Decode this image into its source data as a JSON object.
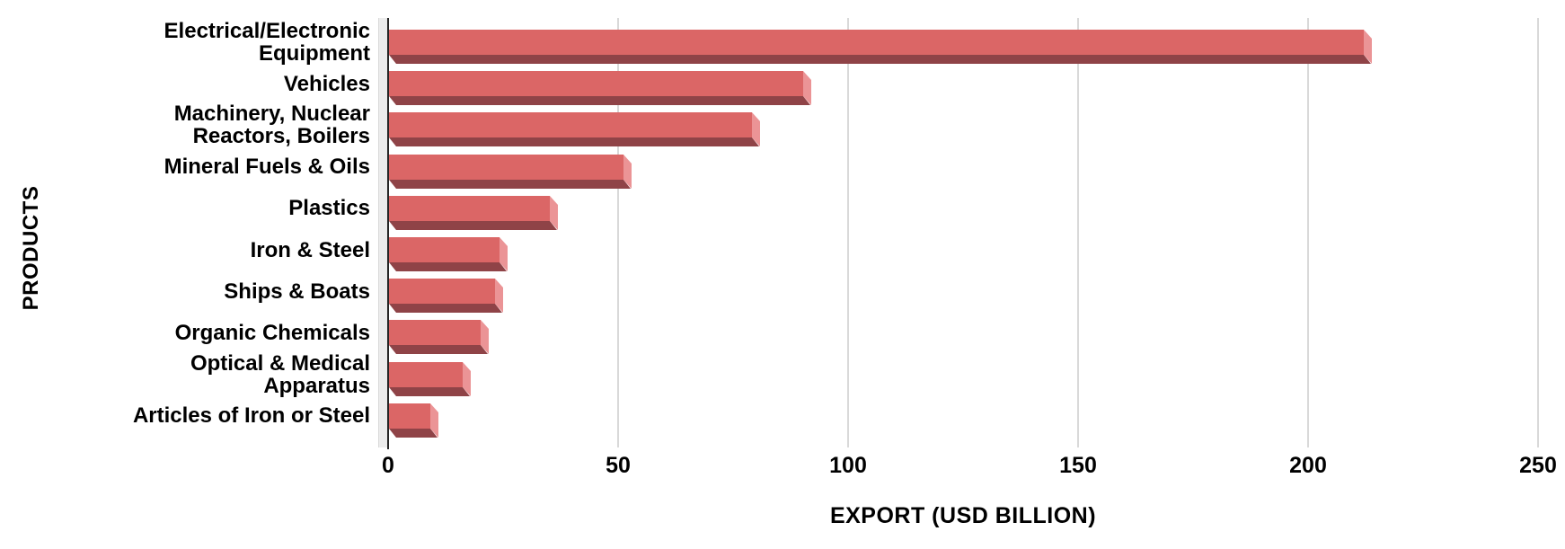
{
  "chart_data": {
    "type": "bar",
    "orientation": "horizontal",
    "title": "",
    "xlabel": "EXPORT (USD BILLION)",
    "ylabel": "PRODUCTS",
    "xlim": [
      0,
      250
    ],
    "xticks": [
      "0",
      "50",
      "100",
      "150",
      "200",
      "250"
    ],
    "grid": true,
    "legend": false,
    "categories": [
      "Electrical/Electronic Equipment",
      "Vehicles",
      "Machinery, Nuclear Reactors, Boilers",
      "Mineral Fuels & Oils",
      "Plastics",
      "Iron & Steel",
      "Ships & Boats",
      "Organic Chemicals",
      "Optical & Medical Apparatus",
      "Articles of Iron or Steel"
    ],
    "values": [
      212,
      90,
      79,
      51,
      35,
      24,
      23,
      20,
      16,
      9
    ],
    "category_label_lines": [
      [
        "Electrical/Electronic",
        "Equipment"
      ],
      [
        "Vehicles"
      ],
      [
        "Machinery, Nuclear",
        "Reactors, Boilers"
      ],
      [
        "Mineral Fuels & Oils"
      ],
      [
        "Plastics"
      ],
      [
        "Iron & Steel"
      ],
      [
        "Ships & Boats"
      ],
      [
        "Organic Chemicals"
      ],
      [
        "Optical & Medical",
        "Apparatus"
      ],
      [
        "Articles of Iron or Steel"
      ]
    ]
  },
  "colors": {
    "bar_front": "#db6666",
    "bar_side": "#eb9496",
    "bar_bottom": "#8f4347",
    "wall": "#ececec",
    "axis_line": "#262626",
    "gridline": "#d9d9d9",
    "text": "#000000",
    "background": "#ffffff"
  }
}
